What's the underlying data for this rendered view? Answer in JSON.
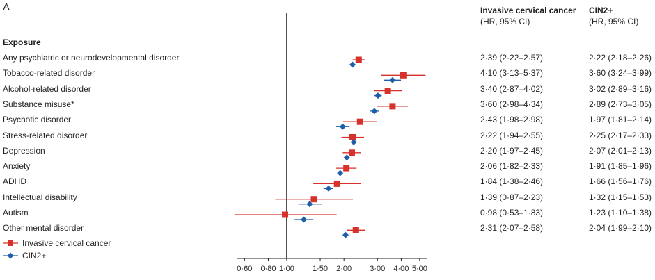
{
  "panel_label": "A",
  "header": {
    "col1_title": "Invasive cervical cancer",
    "col1_sub": "(HR, 95% CI)",
    "col2_title": "CIN2+",
    "col2_sub": "(HR, 95% CI)",
    "exposure": "Exposure"
  },
  "legend": {
    "series1": "Invasive cervical cancer",
    "series2": "CIN2+"
  },
  "colors": {
    "series1": "#d7312b",
    "series2": "#1f5ea8",
    "axis": "#231f20"
  },
  "rows": [
    {
      "label": "Any psychiatric or neurodevelopmental disorder",
      "icc": "2·39 (2·22–2·57)",
      "cin": "2·22 (2·18–2·26)"
    },
    {
      "label": "Tobacco-related disorder",
      "icc": "4·10 (3·13–5·37)",
      "cin": "3·60 (3·24–3·99)"
    },
    {
      "label": "Alcohol-related disorder",
      "icc": "3·40 (2·87–4·02)",
      "cin": "3·02 (2·89–3·16)"
    },
    {
      "label": "Substance misuse*",
      "icc": "3·60 (2·98–4·34)",
      "cin": "2·89 (2·73–3·05)"
    },
    {
      "label": "Psychotic disorder",
      "icc": "2·43 (1·98–2·98)",
      "cin": "1·97 (1·81–2·14)"
    },
    {
      "label": "Stress-related disorder",
      "icc": "2·22 (1·94–2·55)",
      "cin": "2·25 (2·17–2·33)"
    },
    {
      "label": "Depression",
      "icc": "2·20 (1·97–2·45)",
      "cin": "2·07 (2·01–2·13)"
    },
    {
      "label": "Anxiety",
      "icc": "2·06 (1·82–2·33)",
      "cin": "1·91 (1·85–1·96)"
    },
    {
      "label": "ADHD",
      "icc": "1·84 (1·38–2·46)",
      "cin": "1·66 (1·56–1·76)"
    },
    {
      "label": "Intellectual disability",
      "icc": "1·39 (0·87–2·23)",
      "cin": "1·32 (1·15–1·53)"
    },
    {
      "label": "Autism",
      "icc": "0·98 (0·53–1·83)",
      "cin": "1·23 (1·10–1·38)"
    },
    {
      "label": "Other mental disorder",
      "icc": "2·31 (2·07–2·58)",
      "cin": "2·04 (1·99–2·10)"
    }
  ],
  "chart_data": {
    "type": "scatter",
    "x_scale": "log",
    "xlim": [
      0.55,
      5.4
    ],
    "reference_line": 1.0,
    "x_ticks": [
      "0·60",
      "0·80",
      "1·00",
      "1·50",
      "2·00",
      "3·00",
      "4·00",
      "5·00"
    ],
    "x_tick_values": [
      0.6,
      0.8,
      1.0,
      1.5,
      2.0,
      3.0,
      4.0,
      5.0
    ],
    "categories": [
      "Any psychiatric or neurodevelopmental disorder",
      "Tobacco-related disorder",
      "Alcohol-related disorder",
      "Substance misuse*",
      "Psychotic disorder",
      "Stress-related disorder",
      "Depression",
      "Anxiety",
      "ADHD",
      "Intellectual disability",
      "Autism",
      "Other mental disorder"
    ],
    "series": [
      {
        "name": "Invasive cervical cancer",
        "marker": "square",
        "values": [
          2.39,
          4.1,
          3.4,
          3.6,
          2.43,
          2.22,
          2.2,
          2.06,
          1.84,
          1.39,
          0.98,
          2.31
        ],
        "lower": [
          2.22,
          3.13,
          2.87,
          2.98,
          1.98,
          1.94,
          1.97,
          1.82,
          1.38,
          0.87,
          0.53,
          2.07
        ],
        "upper": [
          2.57,
          5.37,
          4.02,
          4.34,
          2.98,
          2.55,
          2.45,
          2.33,
          2.46,
          2.23,
          1.83,
          2.58
        ]
      },
      {
        "name": "CIN2+",
        "marker": "diamond",
        "values": [
          2.22,
          3.6,
          3.02,
          2.89,
          1.97,
          2.25,
          2.07,
          1.91,
          1.66,
          1.32,
          1.23,
          2.04
        ],
        "lower": [
          2.18,
          3.24,
          2.89,
          2.73,
          1.81,
          2.17,
          2.01,
          1.85,
          1.56,
          1.15,
          1.1,
          1.99
        ],
        "upper": [
          2.26,
          3.99,
          3.16,
          3.05,
          2.14,
          2.33,
          2.13,
          1.96,
          1.76,
          1.53,
          1.38,
          2.1
        ]
      }
    ]
  }
}
